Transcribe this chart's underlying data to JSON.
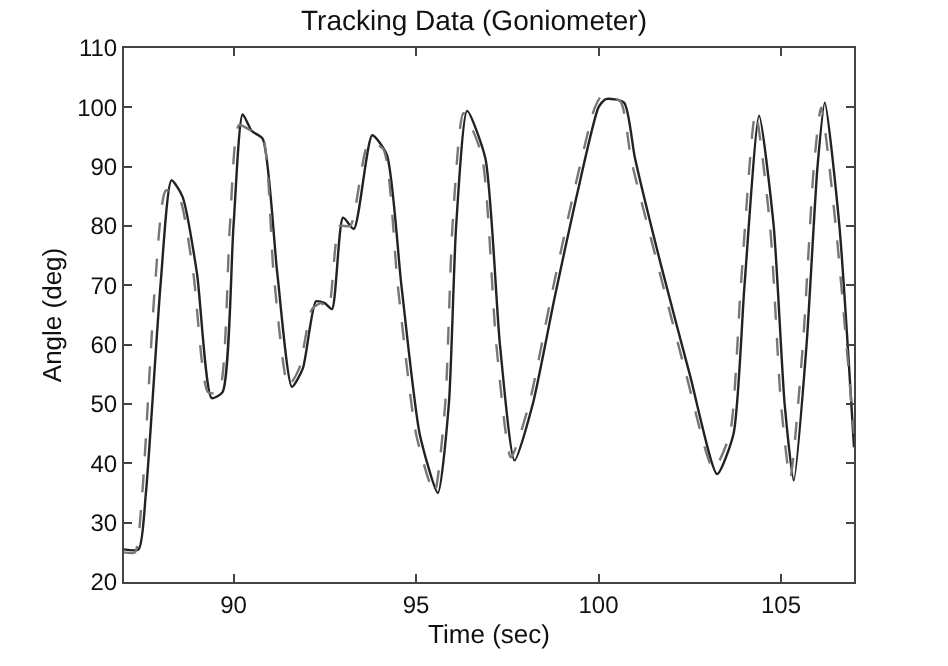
{
  "chart_data": {
    "type": "line",
    "title": "Tracking Data (Goniometer)",
    "xlabel": "Time (sec)",
    "ylabel": "Angle (deg)",
    "xlim": [
      87,
      107
    ],
    "ylim": [
      20,
      110
    ],
    "xticks": [
      90,
      95,
      100,
      105
    ],
    "yticks": [
      20,
      30,
      40,
      50,
      60,
      70,
      80,
      90,
      100,
      110
    ],
    "marker": "none",
    "series": [
      {
        "color": "#222222",
        "line_style": "solid",
        "x": [
          87.0,
          87.4,
          87.6,
          88.0,
          88.3,
          88.6,
          89.0,
          89.4,
          89.7,
          90.0,
          90.25,
          90.5,
          90.8,
          91.2,
          91.6,
          91.9,
          92.26,
          92.5,
          92.7,
          93.0,
          93.3,
          93.8,
          94.2,
          94.6,
          95.1,
          95.6,
          95.9,
          96.1,
          96.4,
          96.9,
          97.3,
          97.7,
          98.2,
          98.8,
          99.4,
          100.0,
          100.2,
          100.7,
          101.0,
          101.7,
          102.5,
          103.25,
          103.7,
          104.0,
          104.4,
          104.8,
          105.1,
          105.35,
          105.7,
          106.0,
          106.2,
          106.6,
          107.0
        ],
        "values": [
          25.5,
          25.5,
          35,
          70,
          87.7,
          85,
          72,
          51,
          52,
          80,
          98.8,
          96,
          94.7,
          72,
          52.9,
          56,
          67.3,
          67,
          66,
          81.4,
          79.5,
          95.3,
          92,
          70,
          45,
          35,
          50,
          80,
          99.4,
          91.4,
          60,
          40.5,
          50,
          68,
          85,
          100,
          101.4,
          100.8,
          91.4,
          73.7,
          55,
          38.2,
          45,
          70,
          98.6,
          80,
          50,
          37.1,
          60,
          90,
          100.8,
          80,
          42.7
        ]
      },
      {
        "color": "#777777",
        "line_style": "dashed",
        "x": [
          87.0,
          87.3,
          87.5,
          87.85,
          88.15,
          88.5,
          88.9,
          89.3,
          89.6,
          89.9,
          90.15,
          90.5,
          90.8,
          91.1,
          91.5,
          91.8,
          92.15,
          92.4,
          92.6,
          92.9,
          93.2,
          93.7,
          94.1,
          94.5,
          95.0,
          95.5,
          95.8,
          96.0,
          96.3,
          96.8,
          97.2,
          97.6,
          98.1,
          98.7,
          99.3,
          99.9,
          100.1,
          100.6,
          100.9,
          101.6,
          102.4,
          103.15,
          103.6,
          103.9,
          104.3,
          104.7,
          105.0,
          105.25,
          105.6,
          105.9,
          106.1,
          106.5,
          107.0
        ],
        "values": [
          25,
          25,
          35,
          70,
          86,
          85,
          72,
          52,
          52,
          80,
          97,
          96,
          95,
          72,
          53,
          56,
          66,
          67,
          66,
          80,
          80,
          94,
          93,
          70,
          45,
          35,
          50,
          80,
          99,
          92,
          60,
          41,
          50,
          68,
          85,
          100,
          102,
          101,
          91,
          74,
          55,
          39,
          45,
          70,
          99,
          80,
          50,
          37.5,
          60,
          90,
          100,
          80,
          45
        ]
      }
    ]
  }
}
